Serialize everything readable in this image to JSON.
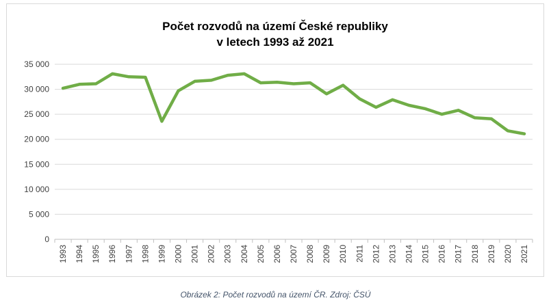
{
  "chart_data": {
    "type": "line",
    "title_lines": [
      "Počet rozvodů na území České republiky",
      "v letech 1993 až 2021"
    ],
    "xlabel": "",
    "ylabel": "",
    "x": [
      "1993",
      "1994",
      "1995",
      "1996",
      "1997",
      "1998",
      "1999",
      "2000",
      "2001",
      "2002",
      "2003",
      "2004",
      "2005",
      "2006",
      "2007",
      "2008",
      "2009",
      "2010",
      "2011",
      "2012",
      "2013",
      "2014",
      "2015",
      "2016",
      "2017",
      "2018",
      "2019",
      "2020",
      "2021"
    ],
    "series": [
      {
        "values": [
          30200,
          31000,
          31100,
          33100,
          32500,
          32400,
          23600,
          29700,
          31600,
          31800,
          32800,
          33100,
          31300,
          31400,
          31100,
          31300,
          29100,
          30800,
          28100,
          26400,
          27900,
          26800,
          26100,
          25000,
          25800,
          24300,
          24100,
          21700,
          21100
        ],
        "color": "#70ad47"
      }
    ],
    "ylim": [
      0,
      35000
    ],
    "yticks": [
      0,
      5000,
      10000,
      15000,
      20000,
      25000,
      30000,
      35000
    ],
    "ytick_labels": [
      "0",
      "5 000",
      "10 000",
      "15 000",
      "20 000",
      "25 000",
      "30 000",
      "35 000"
    ],
    "grid": true,
    "legend": "none"
  },
  "caption": "Obrázek 2: Počet rozvodů na území ČR. Zdroj: ČSÚ"
}
